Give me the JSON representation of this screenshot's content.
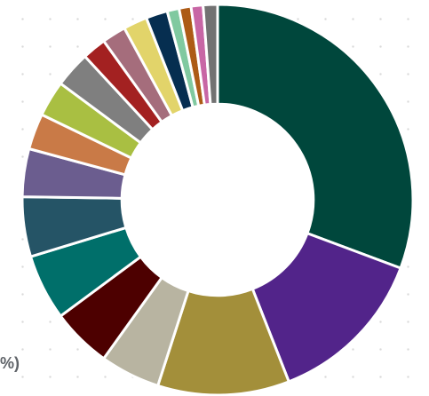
{
  "chart_data": {
    "type": "pie",
    "subtype": "donut",
    "title": "",
    "visible_label": "%)",
    "slices": [
      {
        "value": 31.0,
        "color": "#00473c"
      },
      {
        "value": 13.5,
        "color": "#52248a"
      },
      {
        "value": 11.0,
        "color": "#a38f3a"
      },
      {
        "value": 5.0,
        "color": "#b8b4a1"
      },
      {
        "value": 5.0,
        "color": "#4d0000"
      },
      {
        "value": 5.5,
        "color": "#006f6a"
      },
      {
        "value": 5.0,
        "color": "#255466"
      },
      {
        "value": 4.0,
        "color": "#6b5d8f"
      },
      {
        "value": 3.0,
        "color": "#c97a47"
      },
      {
        "value": 3.0,
        "color": "#a9bf42"
      },
      {
        "value": 3.0,
        "color": "#7f7f7f"
      },
      {
        "value": 2.0,
        "color": "#a32121"
      },
      {
        "value": 2.0,
        "color": "#a56d7c"
      },
      {
        "value": 2.0,
        "color": "#e2d46a"
      },
      {
        "value": 1.8,
        "color": "#062e50"
      },
      {
        "value": 1.0,
        "color": "#80c9a0"
      },
      {
        "value": 1.0,
        "color": "#ad5b16"
      },
      {
        "value": 1.0,
        "color": "#c866a5"
      },
      {
        "value": 1.2,
        "color": "#727272"
      }
    ],
    "start_angle_degrees": 0,
    "direction": "clockwise",
    "inner_radius_ratio": 0.49,
    "grid": true
  }
}
